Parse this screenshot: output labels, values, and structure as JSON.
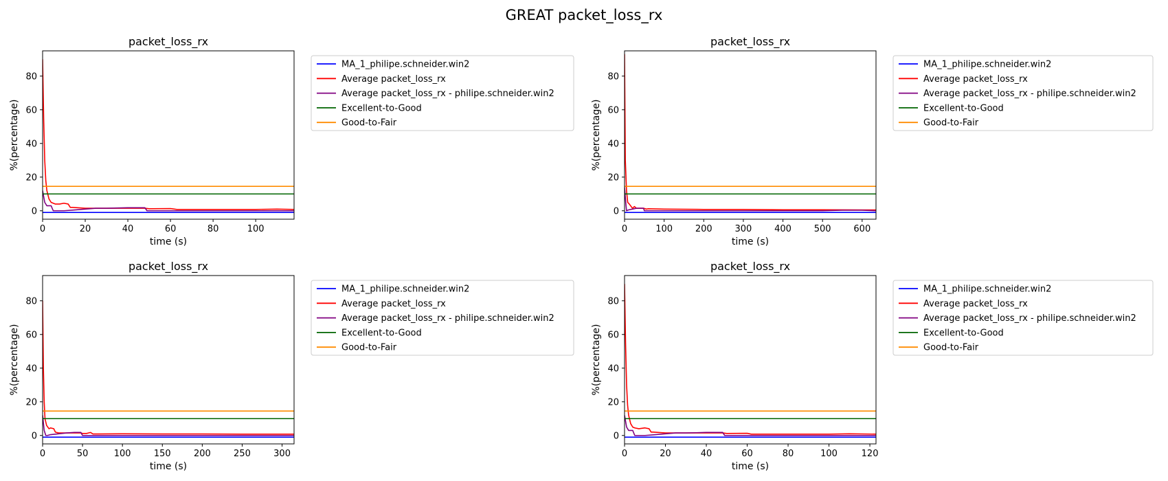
{
  "figure": {
    "title": "GREAT packet_loss_rx"
  },
  "legend_labels": [
    "MA_1_philipe.schneider.win2",
    "Average packet_loss_rx",
    "Average packet_loss_rx - philipe.schneider.win2",
    "Excellent-to-Good",
    "Good-to-Fair"
  ],
  "colors": {
    "ma": "#0000ff",
    "average": "#ff0000",
    "average_user": "#800080",
    "excellent_to_good": "#006400",
    "good_to_fair": "#ff8c00"
  },
  "chart_data": [
    {
      "type": "line",
      "title": "packet_loss_rx",
      "xlabel": "time (s)",
      "ylabel": "%(percentage)",
      "xlim": [
        0,
        118
      ],
      "ylim": [
        -5,
        95
      ],
      "xticks": [
        0,
        20,
        40,
        60,
        80,
        100
      ],
      "yticks": [
        0,
        20,
        40,
        60,
        80
      ],
      "grid": false,
      "legend": "outside-upper-right",
      "series": [
        {
          "name": "MA_1_philipe.schneider.win2",
          "x": [
            0,
            118
          ],
          "y": [
            -1,
            -1
          ]
        },
        {
          "name": "Average packet_loss_rx",
          "x": [
            0,
            0.5,
            1,
            1.5,
            2,
            3,
            4,
            5,
            6,
            8,
            10,
            12,
            13,
            14,
            20,
            30,
            40,
            48,
            50,
            60,
            63,
            70,
            80,
            90,
            100,
            110,
            118
          ],
          "y": [
            90,
            55,
            30,
            18,
            12,
            7,
            5,
            4.5,
            4,
            4,
            4.5,
            4,
            2,
            2,
            1.5,
            1.5,
            1.5,
            1.5,
            1.2,
            1.3,
            0.8,
            0.8,
            0.8,
            0.8,
            0.8,
            1,
            0.8
          ]
        },
        {
          "name": "Average packet_loss_rx - philipe.schneider.win2",
          "x": [
            0,
            1,
            2,
            3,
            4,
            5,
            6,
            10,
            15,
            20,
            25,
            30,
            40,
            48,
            49,
            60,
            80,
            100,
            118
          ],
          "y": [
            12,
            5,
            3,
            3,
            3,
            0,
            0,
            0,
            0.5,
            1,
            1.5,
            1.5,
            1.8,
            1.8,
            0,
            0,
            0,
            0,
            0
          ]
        },
        {
          "name": "Excellent-to-Good",
          "x": [
            0,
            118
          ],
          "y": [
            10,
            10
          ]
        },
        {
          "name": "Good-to-Fair",
          "x": [
            0,
            118
          ],
          "y": [
            14.5,
            14.5
          ]
        }
      ]
    },
    {
      "type": "line",
      "title": "packet_loss_rx",
      "xlabel": "time (s)",
      "ylabel": "%(percentage)",
      "xlim": [
        0,
        635
      ],
      "ylim": [
        -5,
        95
      ],
      "xticks": [
        0,
        100,
        200,
        300,
        400,
        500,
        600
      ],
      "yticks": [
        0,
        20,
        40,
        60,
        80
      ],
      "grid": false,
      "legend": "outside-upper-right",
      "series": [
        {
          "name": "MA_1_philipe.schneider.win2",
          "x": [
            0,
            635
          ],
          "y": [
            -1,
            -1
          ]
        },
        {
          "name": "Average packet_loss_rx",
          "x": [
            0,
            2,
            5,
            8,
            12,
            20,
            25,
            30,
            45,
            48,
            55,
            60,
            100,
            200,
            300,
            400,
            500,
            600,
            635
          ],
          "y": [
            93,
            30,
            12,
            5,
            4,
            1.5,
            2.5,
            1.5,
            1.5,
            1.5,
            1,
            1.2,
            1,
            0.8,
            0.8,
            0.6,
            0.6,
            0.5,
            0.5
          ]
        },
        {
          "name": "Average packet_loss_rx - philipe.schneider.win2",
          "x": [
            0,
            3,
            5,
            10,
            20,
            30,
            40,
            48,
            50,
            100,
            200,
            300,
            400,
            500,
            550,
            600,
            635
          ],
          "y": [
            14,
            5,
            0,
            0.5,
            1,
            1.5,
            1.5,
            1.5,
            0,
            0,
            0,
            0,
            0,
            0,
            0.3,
            0.3,
            0
          ]
        },
        {
          "name": "Excellent-to-Good",
          "x": [
            0,
            635
          ],
          "y": [
            10,
            10
          ]
        },
        {
          "name": "Good-to-Fair",
          "x": [
            0,
            635
          ],
          "y": [
            14.5,
            14.5
          ]
        }
      ]
    },
    {
      "type": "line",
      "title": "packet_loss_rx",
      "xlabel": "time (s)",
      "ylabel": "%(percentage)",
      "xlim": [
        0,
        315
      ],
      "ylim": [
        -5,
        95
      ],
      "xticks": [
        0,
        50,
        100,
        150,
        200,
        250,
        300
      ],
      "yticks": [
        0,
        20,
        40,
        60,
        80
      ],
      "grid": false,
      "legend": "outside-upper-right",
      "series": [
        {
          "name": "MA_1_philipe.schneider.win2",
          "x": [
            0,
            315
          ],
          "y": [
            -1,
            -1
          ]
        },
        {
          "name": "Average packet_loss_rx",
          "x": [
            0,
            1,
            2,
            3,
            5,
            8,
            10,
            14,
            16,
            20,
            30,
            40,
            48,
            50,
            55,
            60,
            63,
            70,
            100,
            150,
            200,
            250,
            300,
            315
          ],
          "y": [
            80,
            40,
            20,
            10,
            6,
            4,
            4.5,
            4,
            2,
            1.5,
            1.5,
            1.5,
            1.5,
            1.2,
            1.2,
            1.8,
            0.9,
            0.9,
            1,
            0.9,
            0.9,
            0.8,
            0.8,
            0.8
          ]
        },
        {
          "name": "Average packet_loss_rx - philipe.schneider.win2",
          "x": [
            0,
            2,
            4,
            6,
            10,
            20,
            30,
            40,
            48,
            50,
            100,
            150,
            200,
            250,
            300,
            315
          ],
          "y": [
            12,
            3,
            0,
            0,
            0.5,
            1,
            1.5,
            1.8,
            1.8,
            0,
            0,
            0,
            0,
            0,
            0,
            0
          ]
        },
        {
          "name": "Excellent-to-Good",
          "x": [
            0,
            315
          ],
          "y": [
            10,
            10
          ]
        },
        {
          "name": "Good-to-Fair",
          "x": [
            0,
            315
          ],
          "y": [
            14.5,
            14.5
          ]
        }
      ]
    },
    {
      "type": "line",
      "title": "packet_loss_rx",
      "xlabel": "time (s)",
      "ylabel": "%(percentage)",
      "xlim": [
        0,
        123
      ],
      "ylim": [
        -5,
        95
      ],
      "xticks": [
        0,
        20,
        40,
        60,
        80,
        100,
        120
      ],
      "yticks": [
        0,
        20,
        40,
        60,
        80
      ],
      "grid": false,
      "legend": "outside-upper-right",
      "series": [
        {
          "name": "MA_1_philipe.schneider.win2",
          "x": [
            0,
            123
          ],
          "y": [
            -1,
            -1
          ]
        },
        {
          "name": "Average packet_loss_rx",
          "x": [
            0,
            0.5,
            1,
            1.5,
            2,
            3,
            4,
            5,
            7,
            10,
            12,
            13,
            14,
            20,
            30,
            40,
            48,
            50,
            60,
            62,
            70,
            80,
            100,
            110,
            123
          ],
          "y": [
            90,
            55,
            30,
            18,
            12,
            7,
            5,
            4.5,
            4,
            4.5,
            4,
            2,
            2,
            1.5,
            1.5,
            1.5,
            1.5,
            1.2,
            1.3,
            0.8,
            0.8,
            0.8,
            0.8,
            1,
            0.8
          ]
        },
        {
          "name": "Average packet_loss_rx - philipe.schneider.win2",
          "x": [
            0,
            1,
            2,
            3,
            4,
            5,
            6,
            10,
            15,
            20,
            25,
            30,
            40,
            48,
            49,
            60,
            80,
            100,
            123
          ],
          "y": [
            12,
            5,
            3,
            3,
            3,
            0,
            0,
            0,
            0.5,
            1,
            1.5,
            1.5,
            1.8,
            1.8,
            0,
            0,
            0,
            0,
            0
          ]
        },
        {
          "name": "Excellent-to-Good",
          "x": [
            0,
            123
          ],
          "y": [
            10,
            10
          ]
        },
        {
          "name": "Good-to-Fair",
          "x": [
            0,
            123
          ],
          "y": [
            14.5,
            14.5
          ]
        }
      ]
    }
  ]
}
